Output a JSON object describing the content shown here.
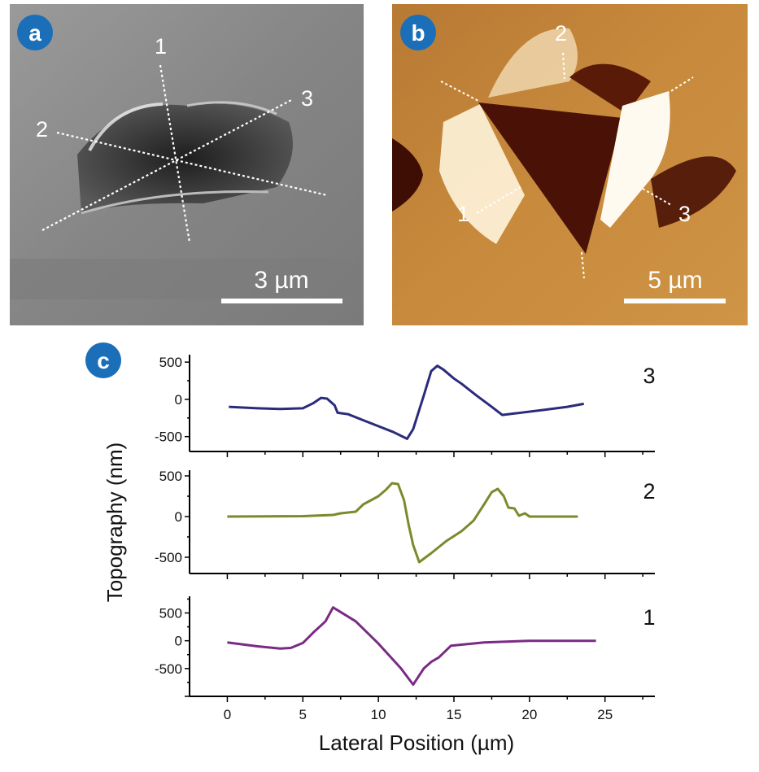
{
  "panels": {
    "a": {
      "badge": "a",
      "line_labels": [
        "1",
        "2",
        "3"
      ],
      "scale_bar": "3 µm"
    },
    "b": {
      "badge": "b",
      "line_labels": [
        "1",
        "2",
        "3"
      ],
      "scale_bar": "5 µm"
    },
    "c": {
      "badge": "c"
    }
  },
  "colors": {
    "badge": "#1a6fb8",
    "afm_base": "#c48438",
    "afm_dark": "#4a1206",
    "sem_base": "#8a8a8a"
  },
  "chart_data": [
    {
      "type": "line",
      "panel_label": "3",
      "color": "#2b2b7c",
      "xlim": [
        -2.5,
        28.3
      ],
      "ylim": [
        -700,
        600
      ],
      "yticks": [
        -500,
        0,
        500
      ],
      "x": [
        0.1,
        2,
        3.5,
        5,
        5.7,
        6.2,
        6.6,
        7.1,
        7.3,
        8,
        9,
        10,
        11,
        11.9,
        12.3,
        13,
        13.5,
        13.9,
        14.3,
        15,
        15.5,
        16.5,
        17.5,
        18.2,
        19,
        21,
        22.5,
        23.6
      ],
      "y": [
        -100,
        -120,
        -130,
        -120,
        -50,
        20,
        10,
        -80,
        -180,
        -200,
        -280,
        -360,
        -440,
        -530,
        -400,
        50,
        380,
        450,
        400,
        280,
        210,
        50,
        -100,
        -210,
        -190,
        -140,
        -100,
        -60
      ]
    },
    {
      "type": "line",
      "panel_label": "2",
      "color": "#7b8a2c",
      "xlim": [
        -2.5,
        28.3
      ],
      "ylim": [
        -700,
        570
      ],
      "yticks": [
        -500,
        0,
        500
      ],
      "x": [
        0,
        5,
        7,
        7.5,
        8.5,
        9,
        9.5,
        10,
        10.5,
        10.9,
        11.3,
        11.7,
        12,
        12.3,
        12.7,
        13.5,
        14.5,
        15.5,
        16.3,
        17,
        17.5,
        17.9,
        18.3,
        18.6,
        19,
        19.3,
        19.7,
        20,
        23.2
      ],
      "y": [
        0,
        5,
        20,
        40,
        60,
        150,
        200,
        250,
        330,
        410,
        400,
        200,
        -100,
        -350,
        -560,
        -450,
        -300,
        -180,
        -50,
        150,
        300,
        340,
        250,
        110,
        100,
        10,
        40,
        0,
        0
      ]
    },
    {
      "type": "line",
      "panel_label": "1",
      "color": "#7a2b84",
      "xlim": [
        -2.5,
        28.3
      ],
      "ylim": [
        -1000,
        800
      ],
      "yticks": [
        -500,
        0,
        500
      ],
      "xticks": [
        0,
        5,
        10,
        15,
        20,
        25
      ],
      "x": [
        0,
        2,
        3.5,
        4.2,
        5,
        5.7,
        6.5,
        7,
        8.5,
        10,
        11.5,
        12.3,
        13,
        13.5,
        14,
        14.8,
        17,
        20,
        24.4
      ],
      "y": [
        -30,
        -100,
        -140,
        -130,
        -40,
        150,
        350,
        600,
        350,
        -50,
        -500,
        -790,
        -500,
        -380,
        -300,
        -90,
        -30,
        0,
        0
      ]
    }
  ],
  "axes": {
    "ylabel": "Topography (nm)",
    "xlabel": "Lateral Position (µm)"
  }
}
